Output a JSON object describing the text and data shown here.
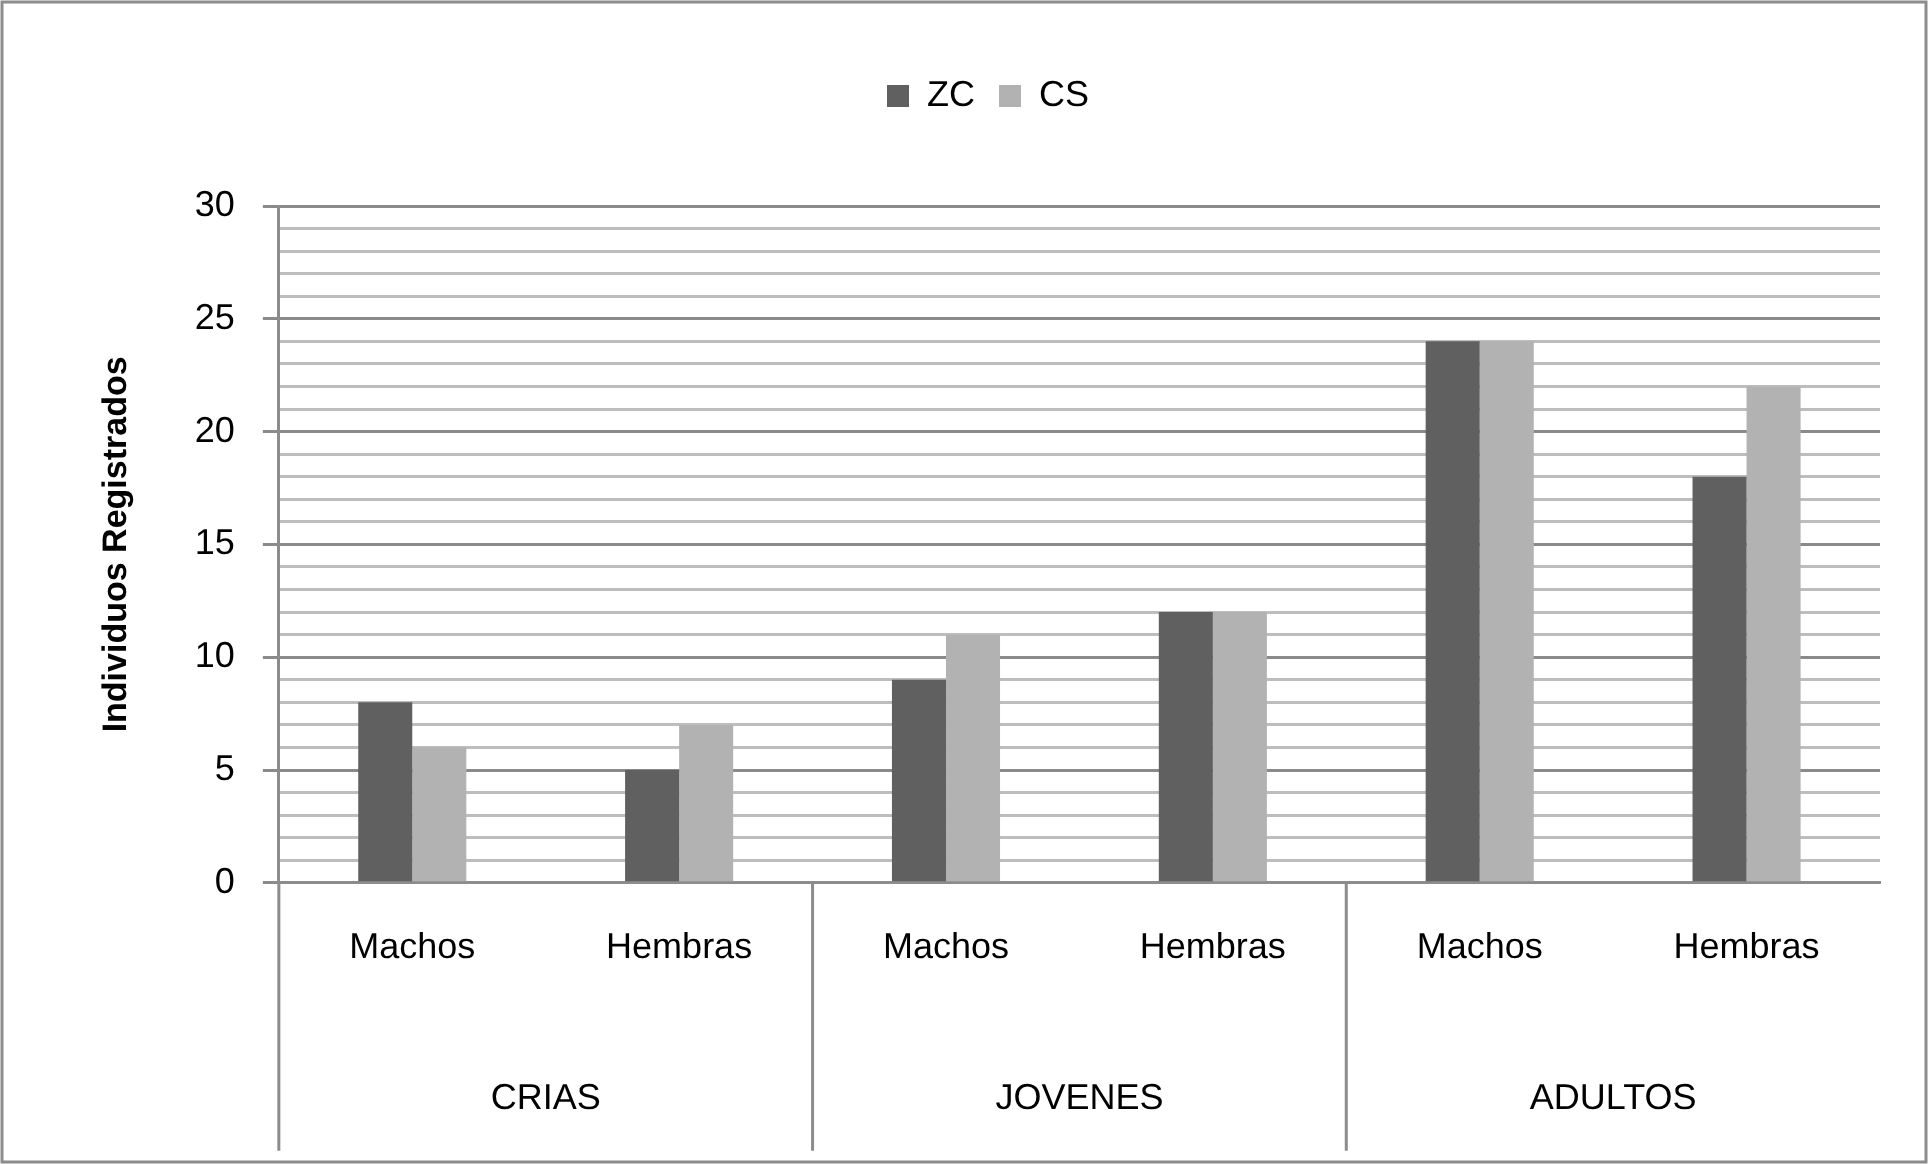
{
  "chart_data": {
    "type": "bar",
    "legend": "top",
    "grid": "y",
    "ylabel": "Individuos Registrados",
    "categories": [
      "Machos",
      "Hembras",
      "Machos",
      "Hembras",
      "Machos",
      "Hembras"
    ],
    "annotations": [
      "CRIAS",
      "JOVENES",
      "ADULTOS"
    ],
    "series": [
      {
        "name": "ZC",
        "color": "#606060",
        "values": [
          8,
          5,
          9,
          12,
          24,
          18
        ]
      },
      {
        "name": "CS",
        "color": "#b2b2b2",
        "values": [
          6,
          7,
          11,
          12,
          24,
          22
        ]
      }
    ],
    "ylim": [
      0,
      30
    ],
    "yticks": [
      0,
      {
        "value": 1,
        "label": null
      },
      {
        "value": 2,
        "label": null
      },
      {
        "value": 3,
        "label": null
      },
      {
        "value": 4,
        "label": null
      },
      5,
      {
        "value": 6,
        "label": null
      },
      {
        "value": 7,
        "label": null
      },
      {
        "value": 8,
        "label": null
      },
      {
        "value": 9,
        "label": null
      },
      10,
      {
        "value": 11,
        "label": null
      },
      {
        "value": 12,
        "label": null
      },
      {
        "value": 13,
        "label": null
      },
      {
        "value": 14,
        "label": null
      },
      15,
      {
        "value": 16,
        "label": null
      },
      {
        "value": 17,
        "label": null
      },
      {
        "value": 18,
        "label": null
      },
      {
        "value": 19,
        "label": null
      },
      20,
      {
        "value": 21,
        "label": null
      },
      {
        "value": 22,
        "label": null
      },
      {
        "value": 23,
        "label": null
      },
      {
        "value": 24,
        "label": null
      },
      25,
      {
        "value": 26,
        "label": null
      },
      {
        "value": 27,
        "label": null
      },
      {
        "value": 28,
        "label": null
      },
      {
        "value": 29,
        "label": null
      },
      30
    ]
  }
}
